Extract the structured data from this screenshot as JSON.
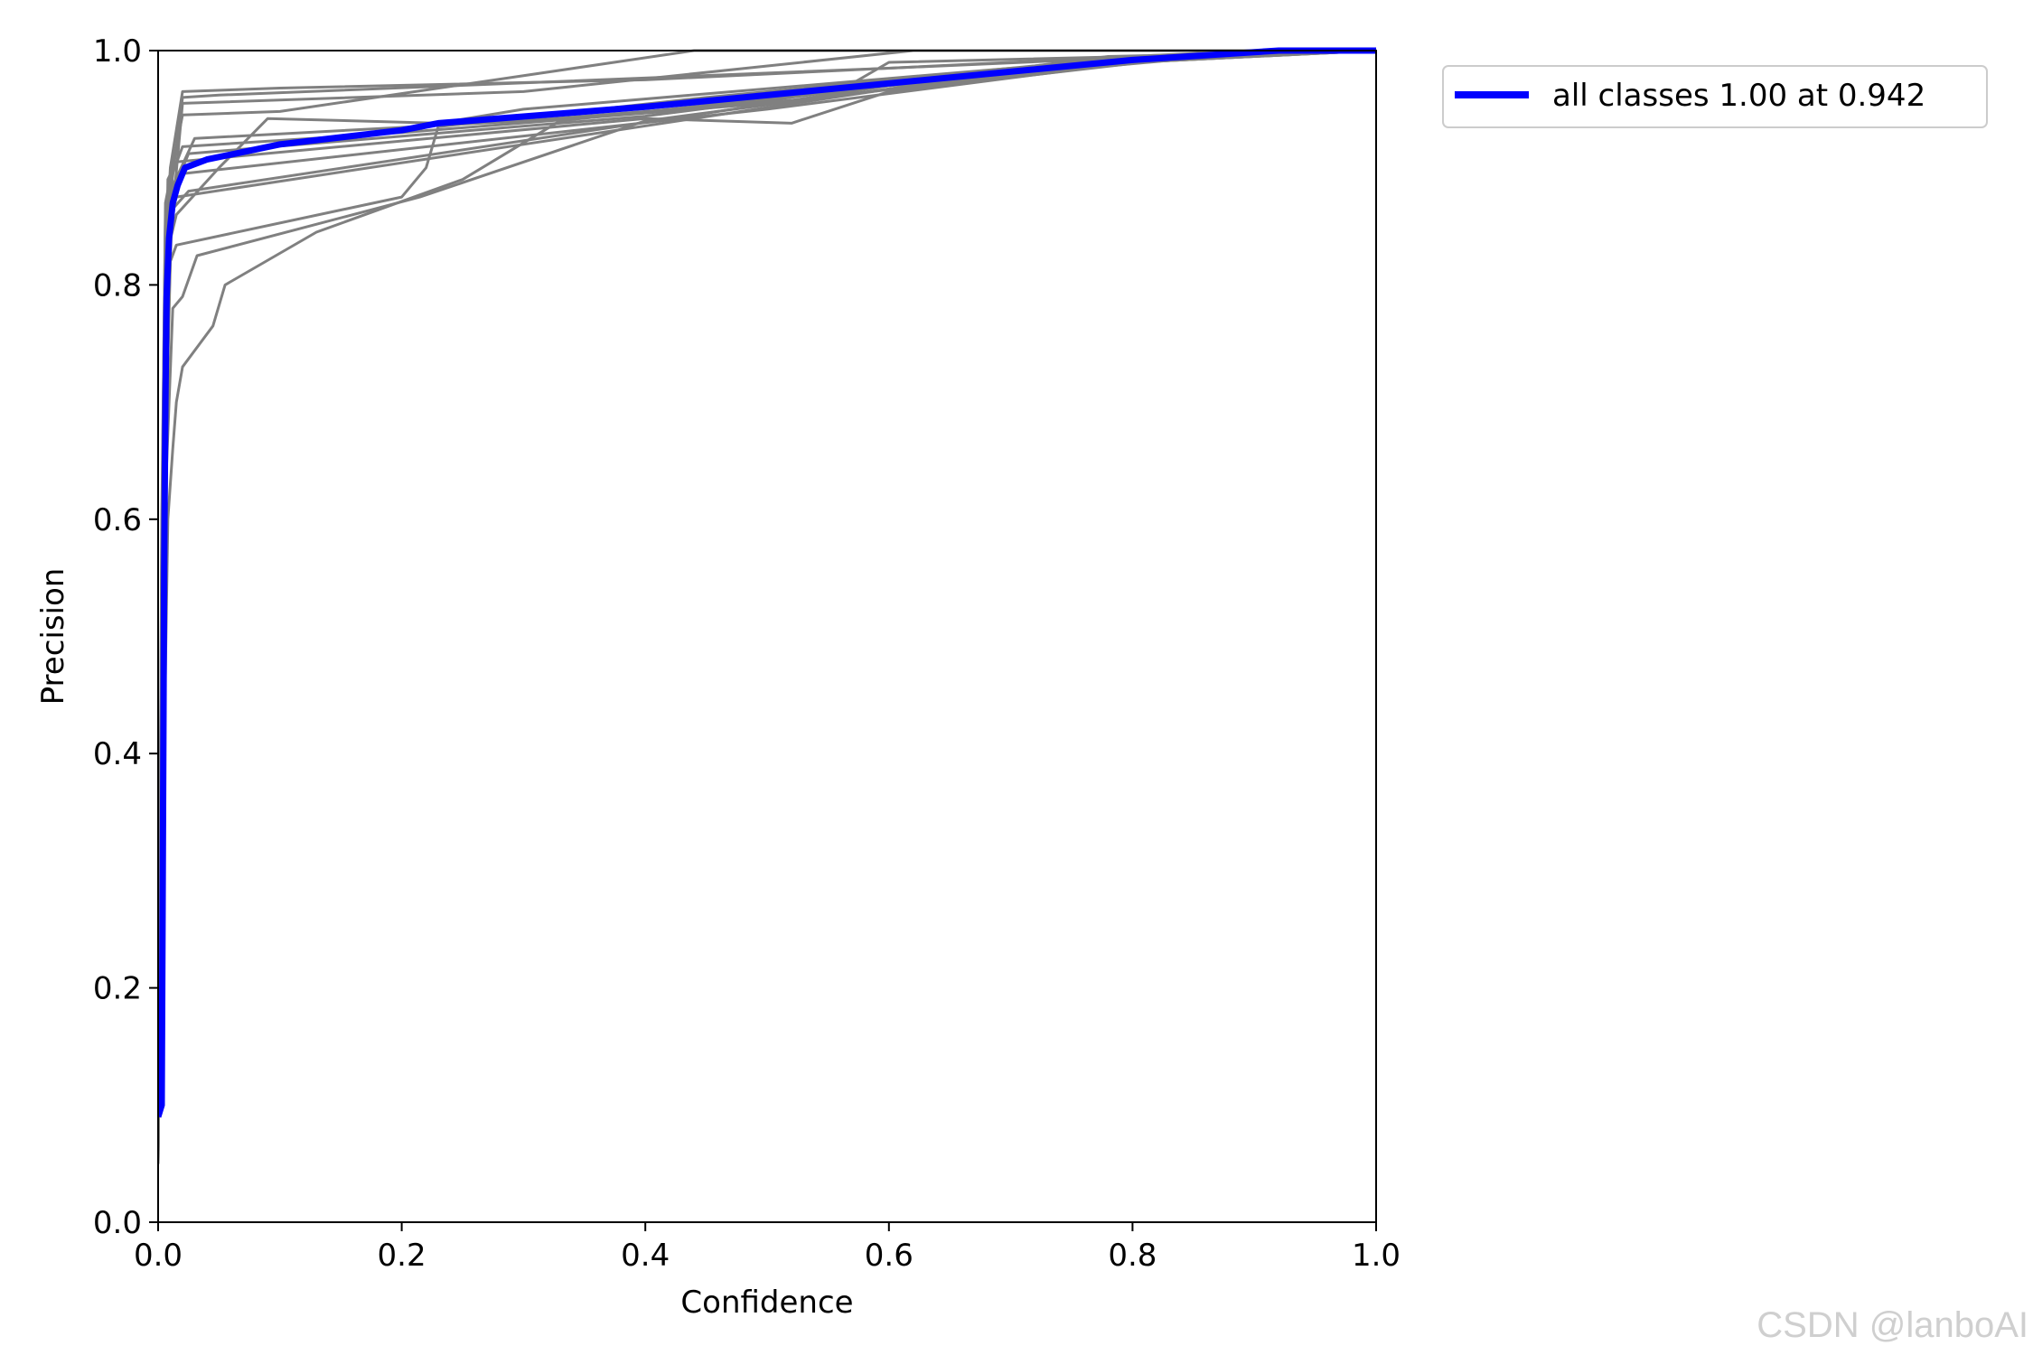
{
  "chart_data": {
    "type": "line",
    "xlabel": "Confidence",
    "ylabel": "Precision",
    "xlim": [
      0.0,
      1.0
    ],
    "ylim": [
      0.0,
      1.0
    ],
    "xticks": [
      "0.0",
      "0.2",
      "0.4",
      "0.6",
      "0.8",
      "1.0"
    ],
    "yticks": [
      "0.0",
      "0.2",
      "0.4",
      "0.6",
      "0.8",
      "1.0"
    ],
    "grid": false,
    "legend_position": "outside-top-right",
    "colors": {
      "class_lines": "#808080",
      "summary_line": "#0000ff"
    },
    "series": [
      {
        "points": [
          [
            0.0,
            0.05
          ],
          [
            0.003,
            0.55
          ],
          [
            0.006,
            0.82
          ],
          [
            0.01,
            0.9
          ],
          [
            0.02,
            0.965
          ],
          [
            0.1,
            0.968
          ],
          [
            0.4,
            0.975
          ],
          [
            0.9,
            1.0
          ],
          [
            1.0,
            1.0
          ]
        ]
      },
      {
        "points": [
          [
            0.0,
            0.06
          ],
          [
            0.004,
            0.6
          ],
          [
            0.008,
            0.86
          ],
          [
            0.02,
            0.96
          ],
          [
            0.05,
            0.962
          ],
          [
            0.6,
            0.985
          ],
          [
            0.93,
            1.0
          ],
          [
            1.0,
            1.0
          ]
        ]
      },
      {
        "points": [
          [
            0.0,
            0.07
          ],
          [
            0.005,
            0.62
          ],
          [
            0.01,
            0.84
          ],
          [
            0.02,
            0.955
          ],
          [
            0.3,
            0.965
          ],
          [
            0.62,
            1.0
          ],
          [
            1.0,
            1.0
          ]
        ]
      },
      {
        "points": [
          [
            0.0,
            0.05
          ],
          [
            0.003,
            0.58
          ],
          [
            0.006,
            0.87
          ],
          [
            0.02,
            0.945
          ],
          [
            0.1,
            0.948
          ],
          [
            0.44,
            1.0
          ],
          [
            1.0,
            1.0
          ]
        ]
      },
      {
        "points": [
          [
            0.0,
            0.05
          ],
          [
            0.004,
            0.6
          ],
          [
            0.01,
            0.88
          ],
          [
            0.03,
            0.925
          ],
          [
            0.3,
            0.94
          ],
          [
            0.55,
            0.96
          ],
          [
            0.6,
            0.99
          ],
          [
            1.0,
            1.0
          ]
        ]
      },
      {
        "points": [
          [
            0.0,
            0.06
          ],
          [
            0.005,
            0.63
          ],
          [
            0.01,
            0.89
          ],
          [
            0.02,
            0.918
          ],
          [
            0.2,
            0.93
          ],
          [
            0.5,
            0.955
          ],
          [
            0.8,
            0.99
          ],
          [
            1.0,
            1.0
          ]
        ]
      },
      {
        "points": [
          [
            0.0,
            0.07
          ],
          [
            0.006,
            0.7
          ],
          [
            0.012,
            0.88
          ],
          [
            0.025,
            0.912
          ],
          [
            0.4,
            0.944
          ],
          [
            0.78,
            0.995
          ],
          [
            1.0,
            1.0
          ]
        ]
      },
      {
        "points": [
          [
            0.0,
            0.06
          ],
          [
            0.004,
            0.62
          ],
          [
            0.008,
            0.89
          ],
          [
            0.015,
            0.905
          ],
          [
            0.4,
            0.942
          ],
          [
            0.52,
            0.938
          ],
          [
            0.6,
            0.965
          ],
          [
            0.85,
            0.995
          ],
          [
            1.0,
            1.0
          ]
        ]
      },
      {
        "points": [
          [
            0.0,
            0.05
          ],
          [
            0.003,
            0.6
          ],
          [
            0.006,
            0.86
          ],
          [
            0.02,
            0.895
          ],
          [
            0.5,
            0.95
          ],
          [
            0.8,
            0.99
          ],
          [
            1.0,
            1.0
          ]
        ]
      },
      {
        "points": [
          [
            0.0,
            0.05
          ],
          [
            0.004,
            0.58
          ],
          [
            0.008,
            0.83
          ],
          [
            0.015,
            0.86
          ],
          [
            0.05,
            0.9
          ],
          [
            0.09,
            0.942
          ],
          [
            0.23,
            0.938
          ],
          [
            0.3,
            0.95
          ],
          [
            0.7,
            0.985
          ],
          [
            1.0,
            1.0
          ]
        ]
      },
      {
        "points": [
          [
            0.0,
            0.06
          ],
          [
            0.005,
            0.6
          ],
          [
            0.01,
            0.82
          ],
          [
            0.015,
            0.834
          ],
          [
            0.2,
            0.875
          ],
          [
            0.22,
            0.9
          ],
          [
            0.23,
            0.935
          ],
          [
            0.45,
            0.96
          ],
          [
            0.75,
            0.99
          ],
          [
            1.0,
            1.0
          ]
        ]
      },
      {
        "points": [
          [
            0.0,
            0.07
          ],
          [
            0.006,
            0.62
          ],
          [
            0.012,
            0.78
          ],
          [
            0.02,
            0.79
          ],
          [
            0.032,
            0.825
          ],
          [
            0.215,
            0.875
          ],
          [
            0.4,
            0.94
          ],
          [
            0.62,
            0.97
          ],
          [
            0.8,
            0.995
          ],
          [
            1.0,
            1.0
          ]
        ]
      },
      {
        "points": [
          [
            0.0,
            0.08
          ],
          [
            0.008,
            0.6
          ],
          [
            0.012,
            0.66
          ],
          [
            0.015,
            0.7
          ],
          [
            0.02,
            0.73
          ],
          [
            0.045,
            0.765
          ],
          [
            0.055,
            0.8
          ],
          [
            0.13,
            0.845
          ],
          [
            0.25,
            0.89
          ],
          [
            0.33,
            0.94
          ],
          [
            0.6,
            0.97
          ],
          [
            0.85,
            0.995
          ],
          [
            1.0,
            1.0
          ]
        ]
      },
      {
        "points": [
          [
            0.0,
            0.05
          ],
          [
            0.003,
            0.56
          ],
          [
            0.006,
            0.8
          ],
          [
            0.012,
            0.865
          ],
          [
            0.025,
            0.88
          ],
          [
            0.6,
            0.97
          ],
          [
            0.92,
            1.0
          ],
          [
            1.0,
            1.0
          ]
        ]
      },
      {
        "points": [
          [
            0.0,
            0.06
          ],
          [
            0.004,
            0.6
          ],
          [
            0.009,
            0.85
          ],
          [
            0.015,
            0.875
          ],
          [
            0.3,
            0.92
          ],
          [
            0.65,
            0.975
          ],
          [
            0.9,
            1.0
          ],
          [
            1.0,
            1.0
          ]
        ]
      },
      {
        "name": "all classes 1.00 at 0.942",
        "highlight": true,
        "points": [
          [
            0.0,
            0.09
          ],
          [
            0.003,
            0.1
          ],
          [
            0.005,
            0.56
          ],
          [
            0.006,
            0.7
          ],
          [
            0.007,
            0.79
          ],
          [
            0.009,
            0.84
          ],
          [
            0.012,
            0.87
          ],
          [
            0.016,
            0.885
          ],
          [
            0.022,
            0.9
          ],
          [
            0.04,
            0.907
          ],
          [
            0.1,
            0.92
          ],
          [
            0.2,
            0.932
          ],
          [
            0.23,
            0.938
          ],
          [
            0.4,
            0.952
          ],
          [
            0.6,
            0.972
          ],
          [
            0.8,
            0.992
          ],
          [
            0.92,
            1.0
          ],
          [
            1.0,
            1.0
          ]
        ]
      }
    ]
  },
  "watermark": "CSDN @lanboAI"
}
